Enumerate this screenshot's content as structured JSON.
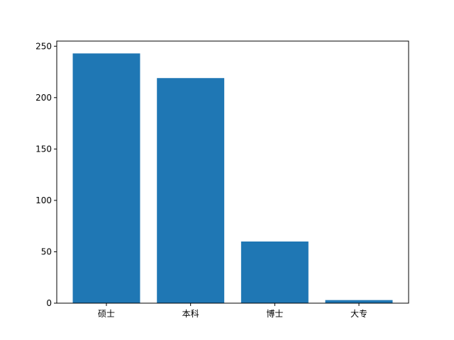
{
  "chart_data": {
    "type": "bar",
    "categories": [
      "硕士",
      "本科",
      "博士",
      "大专"
    ],
    "values": [
      243,
      219,
      60,
      3
    ],
    "title": "",
    "xlabel": "",
    "ylabel": "",
    "ylim": [
      0,
      255
    ],
    "yticks": [
      0,
      50,
      100,
      150,
      200,
      250
    ],
    "grid": false,
    "bar_color": "#1f77b4"
  }
}
